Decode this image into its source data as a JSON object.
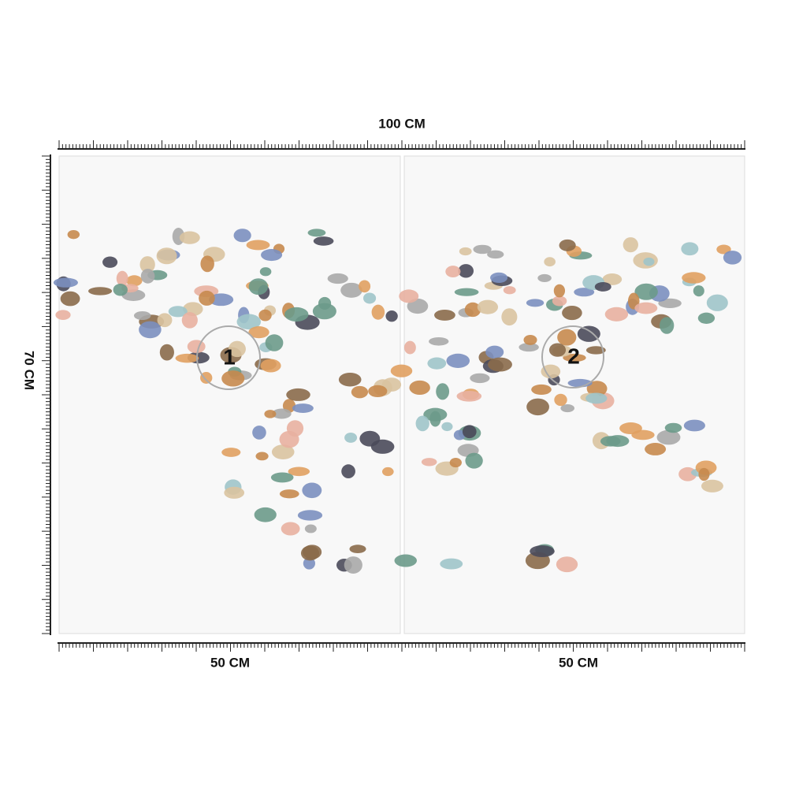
{
  "dimensions": {
    "width_label": "100 CM",
    "height_label": "70 CM",
    "panels": [
      {
        "number": "1",
        "width_label": "50 CM"
      },
      {
        "number": "2",
        "width_label": "50 CM"
      }
    ]
  }
}
